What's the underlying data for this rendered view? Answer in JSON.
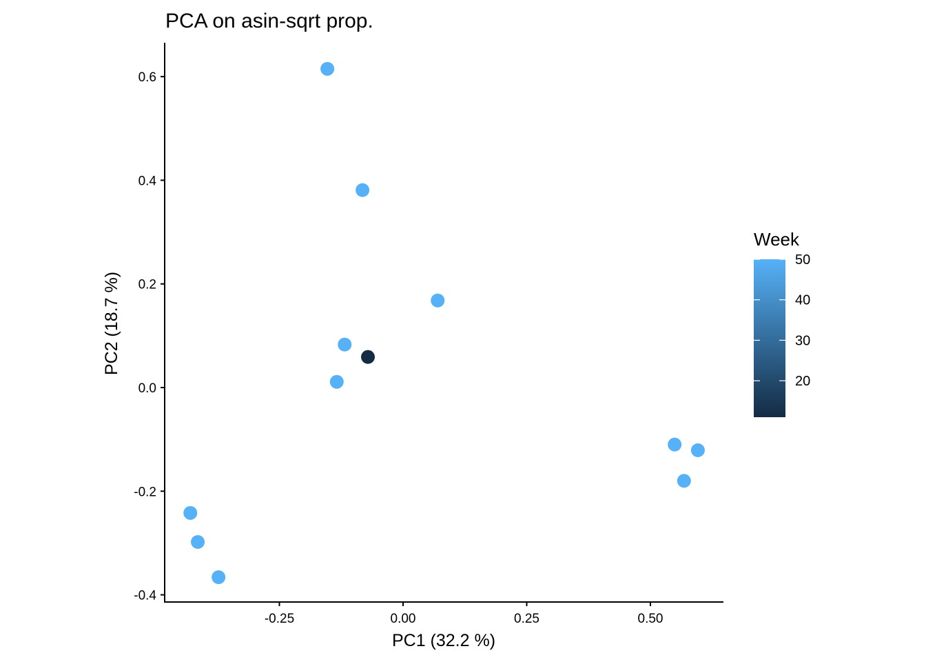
{
  "chart_data": {
    "type": "scatter",
    "title": "PCA on asin-sqrt prop.",
    "xlabel": "PC1 (32.2 %)",
    "ylabel": "PC2 (18.7 %)",
    "xlim": [
      -0.465,
      0.65
    ],
    "ylim": [
      -0.413,
      0.665
    ],
    "xticks": [
      -0.25,
      0.0,
      0.25,
      0.5
    ],
    "xtick_labels": [
      "-0.25",
      "0.00",
      "0.25",
      "0.50"
    ],
    "yticks": [
      -0.4,
      -0.2,
      0.0,
      0.2,
      0.4,
      0.6
    ],
    "ytick_labels": [
      "-0.4",
      "-0.2",
      "0.0",
      "0.2",
      "0.4",
      "0.6"
    ],
    "grid": false,
    "color_scale": {
      "title": "Week",
      "min": 11,
      "max": 50,
      "low_color": "#132B43",
      "high_color": "#56B1F7",
      "ticks": [
        20,
        30,
        40,
        50
      ],
      "tick_labels": [
        "20",
        "30",
        "40",
        "50"
      ],
      "placement": "right"
    },
    "points": [
      {
        "x": -0.153,
        "y": 0.615,
        "week": 50
      },
      {
        "x": -0.082,
        "y": 0.381,
        "week": 50
      },
      {
        "x": 0.07,
        "y": 0.168,
        "week": 50
      },
      {
        "x": -0.118,
        "y": 0.083,
        "week": 50
      },
      {
        "x": -0.071,
        "y": 0.059,
        "week": 11
      },
      {
        "x": -0.134,
        "y": 0.011,
        "week": 50
      },
      {
        "x": 0.549,
        "y": -0.11,
        "week": 50
      },
      {
        "x": 0.596,
        "y": -0.121,
        "week": 50
      },
      {
        "x": 0.568,
        "y": -0.18,
        "week": 50
      },
      {
        "x": -0.43,
        "y": -0.242,
        "week": 50
      },
      {
        "x": -0.415,
        "y": -0.298,
        "week": 50
      },
      {
        "x": -0.373,
        "y": -0.366,
        "week": 50
      }
    ]
  }
}
